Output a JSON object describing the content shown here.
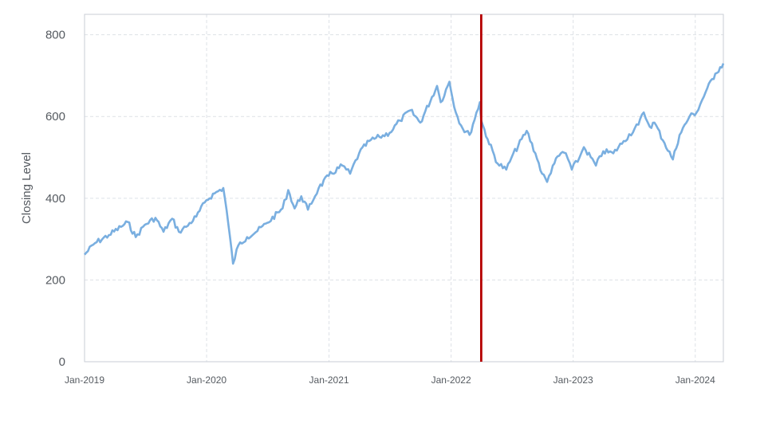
{
  "chart_data": {
    "type": "line",
    "title": "",
    "xlabel": "",
    "ylabel": "Closing Level",
    "x_tick_labels": [
      "Jan-2019",
      "Jan-2020",
      "Jan-2021",
      "Jan-2022",
      "Jan-2023",
      "Jan-2024"
    ],
    "y_ticks": [
      0,
      200,
      400,
      600,
      800
    ],
    "xlim": [
      "2019-01-01",
      "2024-03-25"
    ],
    "ylim": [
      0,
      850
    ],
    "grid": true,
    "line_color": "#7aafe0",
    "marker_line": {
      "x": "2022-04-01",
      "color": "#b50000"
    },
    "series": [
      {
        "values": [
          [
            "2019-01-01",
            262
          ],
          [
            "2019-02-01",
            290
          ],
          [
            "2019-03-15",
            310
          ],
          [
            "2019-04-20",
            330
          ],
          [
            "2019-05-10",
            342
          ],
          [
            "2019-06-03",
            305
          ],
          [
            "2019-06-30",
            335
          ],
          [
            "2019-08-01",
            352
          ],
          [
            "2019-08-25",
            318
          ],
          [
            "2019-09-20",
            350
          ],
          [
            "2019-10-10",
            318
          ],
          [
            "2019-11-01",
            330
          ],
          [
            "2019-12-01",
            355
          ],
          [
            "2019-12-31",
            395
          ],
          [
            "2020-01-25",
            412
          ],
          [
            "2020-02-20",
            425
          ],
          [
            "2020-03-01",
            370
          ],
          [
            "2020-03-20",
            240
          ],
          [
            "2020-04-05",
            285
          ],
          [
            "2020-05-01",
            305
          ],
          [
            "2020-06-01",
            320
          ],
          [
            "2020-07-01",
            340
          ],
          [
            "2020-08-15",
            375
          ],
          [
            "2020-09-01",
            420
          ],
          [
            "2020-09-20",
            375
          ],
          [
            "2020-10-10",
            405
          ],
          [
            "2020-10-30",
            372
          ],
          [
            "2020-12-01",
            425
          ],
          [
            "2020-12-31",
            455
          ],
          [
            "2021-02-10",
            480
          ],
          [
            "2021-03-05",
            460
          ],
          [
            "2021-04-01",
            510
          ],
          [
            "2021-05-01",
            540
          ],
          [
            "2021-06-01",
            550
          ],
          [
            "2021-07-01",
            560
          ],
          [
            "2021-08-01",
            590
          ],
          [
            "2021-09-01",
            615
          ],
          [
            "2021-10-01",
            585
          ],
          [
            "2021-11-20",
            675
          ],
          [
            "2021-12-01",
            635
          ],
          [
            "2021-12-27",
            685
          ],
          [
            "2022-01-15",
            610
          ],
          [
            "2022-02-05",
            570
          ],
          [
            "2022-02-25",
            555
          ],
          [
            "2022-03-28",
            635
          ],
          [
            "2022-04-01",
            590
          ],
          [
            "2022-04-20",
            545
          ],
          [
            "2022-05-20",
            485
          ],
          [
            "2022-06-15",
            470
          ],
          [
            "2022-07-01",
            500
          ],
          [
            "2022-08-15",
            565
          ],
          [
            "2022-09-10",
            510
          ],
          [
            "2022-09-30",
            460
          ],
          [
            "2022-10-15",
            440
          ],
          [
            "2022-11-01",
            480
          ],
          [
            "2022-11-25",
            510
          ],
          [
            "2022-12-10",
            510
          ],
          [
            "2022-12-28",
            470
          ],
          [
            "2023-01-20",
            500
          ],
          [
            "2023-02-02",
            525
          ],
          [
            "2023-03-10",
            480
          ],
          [
            "2023-04-01",
            515
          ],
          [
            "2023-05-01",
            510
          ],
          [
            "2023-06-01",
            540
          ],
          [
            "2023-07-15",
            580
          ],
          [
            "2023-07-31",
            610
          ],
          [
            "2023-08-18",
            575
          ],
          [
            "2023-09-01",
            585
          ],
          [
            "2023-10-01",
            535
          ],
          [
            "2023-10-26",
            495
          ],
          [
            "2023-11-15",
            555
          ],
          [
            "2023-12-15",
            600
          ],
          [
            "2024-01-05",
            610
          ],
          [
            "2024-02-01",
            660
          ],
          [
            "2024-03-01",
            705
          ],
          [
            "2024-03-25",
            730
          ]
        ]
      }
    ]
  }
}
